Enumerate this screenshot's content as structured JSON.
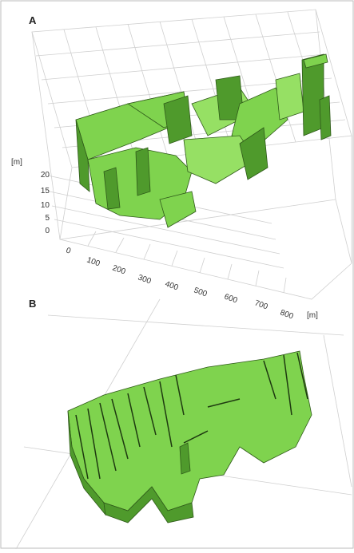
{
  "panels": [
    {
      "label": "A",
      "z_axis": {
        "unit": "[m]",
        "ticks": [
          "20",
          "15",
          "10",
          "5",
          "0"
        ]
      },
      "x_axis": {
        "unit": "[m]",
        "ticks": [
          "0",
          "100",
          "200",
          "300",
          "400",
          "500",
          "600",
          "700",
          "800"
        ]
      }
    },
    {
      "label": "B"
    }
  ]
}
